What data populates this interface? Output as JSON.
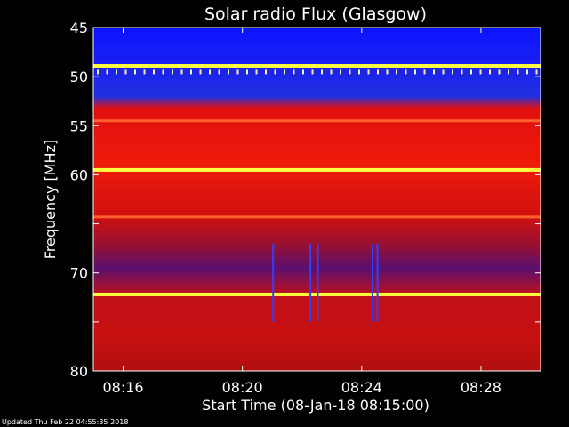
{
  "chart_data": {
    "type": "heatmap",
    "title": "Solar radio Flux (Glasgow)",
    "xlabel": "Start Time (08-Jan-18 08:15:00)",
    "ylabel": "Frequency [MHz]",
    "x_range_minutes": [
      "08:15:00",
      "08:30:00"
    ],
    "xticks": [
      "08:16",
      "08:20",
      "08:24",
      "08:28"
    ],
    "ylim": [
      45,
      80
    ],
    "yticks": [
      45,
      50,
      55,
      60,
      65,
      70,
      75,
      80
    ],
    "ytick_labels": [
      "45",
      "50",
      "55",
      "60",
      "",
      "70",
      "",
      "80"
    ],
    "bright_bands_mhz": [
      {
        "freq": 48.9,
        "intensity": "yellow"
      },
      {
        "freq": 59.5,
        "intensity": "yellow"
      },
      {
        "freq": 72.2,
        "intensity": "yellow"
      },
      {
        "freq": 54.5,
        "intensity": "orange"
      },
      {
        "freq": 64.3,
        "intensity": "orange"
      }
    ],
    "colors": {
      "low": "#1010e0",
      "mid": "#cc0000",
      "high": "#ffff40",
      "background": "#000000",
      "foreground": "#ffffff"
    }
  },
  "footer": "Updated Thu Feb 22 04:55:35 2018"
}
